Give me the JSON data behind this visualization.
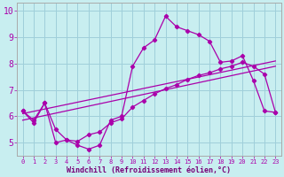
{
  "bg_color": "#c8eef0",
  "grid_color": "#9fcfda",
  "line_color": "#aa00aa",
  "xlabel": "Windchill (Refroidissement éolien,°C)",
  "xlim": [
    -0.5,
    23.5
  ],
  "ylim": [
    4.5,
    10.3
  ],
  "xticks": [
    0,
    1,
    2,
    3,
    4,
    5,
    6,
    7,
    8,
    9,
    10,
    11,
    12,
    13,
    14,
    15,
    16,
    17,
    18,
    19,
    20,
    21,
    22,
    23
  ],
  "yticks": [
    5,
    6,
    7,
    8,
    9,
    10
  ],
  "curve1_x": [
    0,
    1,
    2,
    3,
    4,
    5,
    6,
    7,
    8,
    9,
    10,
    11,
    12,
    13,
    14,
    15,
    16,
    17,
    18,
    19,
    20,
    21,
    22,
    23
  ],
  "curve1_y": [
    6.2,
    5.75,
    6.5,
    5.0,
    5.1,
    4.9,
    4.75,
    4.9,
    5.85,
    6.0,
    7.9,
    8.6,
    8.9,
    9.8,
    9.4,
    9.25,
    9.1,
    8.85,
    8.05,
    8.1,
    8.3,
    7.35,
    6.2,
    6.15
  ],
  "curve2_x": [
    0,
    1,
    2,
    3,
    4,
    5,
    6,
    7,
    8,
    9,
    10,
    11,
    12,
    13,
    14,
    15,
    16,
    17,
    18,
    19,
    20,
    21,
    22,
    23
  ],
  "curve2_y": [
    6.2,
    5.85,
    6.5,
    5.5,
    5.1,
    5.05,
    5.3,
    5.4,
    5.75,
    5.9,
    6.35,
    6.6,
    6.85,
    7.05,
    7.2,
    7.4,
    7.55,
    7.65,
    7.8,
    7.9,
    8.05,
    7.9,
    7.6,
    6.15
  ],
  "line1_x": [
    0,
    23
  ],
  "line1_y": [
    6.1,
    8.1
  ],
  "line2_x": [
    0,
    23
  ],
  "line2_y": [
    5.85,
    7.9
  ],
  "spine_color": "#777777",
  "tick_color": "#aa00aa",
  "label_color": "#770077"
}
